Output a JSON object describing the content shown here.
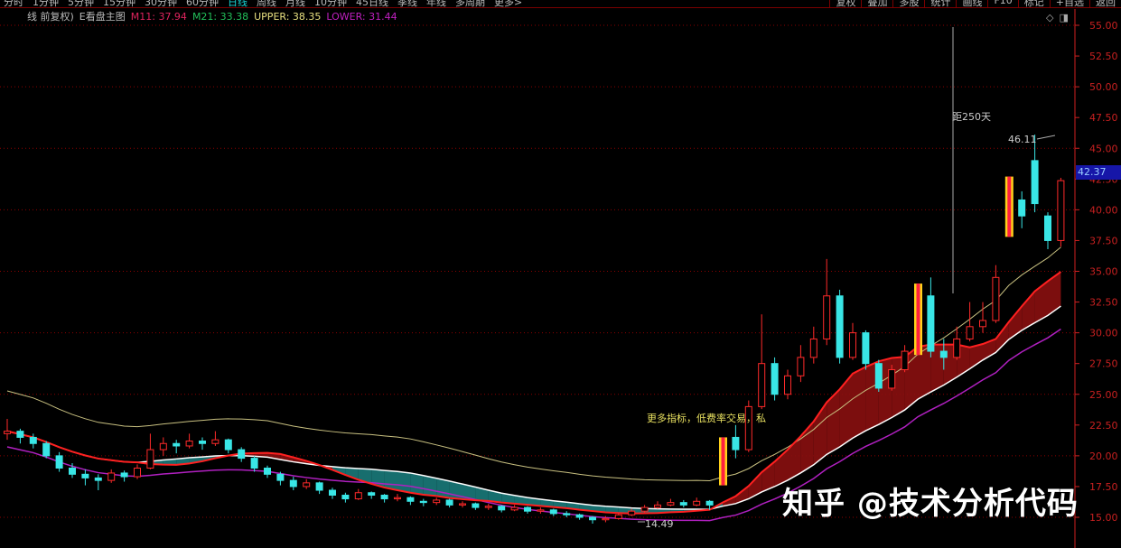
{
  "toolbar": {
    "periods": [
      "分时",
      "1分钟",
      "5分钟",
      "15分钟",
      "30分钟",
      "60分钟",
      "日线",
      "周线",
      "月线",
      "10分钟",
      "45日线",
      "季线",
      "年线",
      "多周期",
      "更多>"
    ],
    "active_period": "日线",
    "actions": [
      "复权",
      "叠加",
      "多股",
      "统计",
      "画线",
      "F10",
      "标记",
      "+自选",
      "返回"
    ]
  },
  "legend": {
    "title": "线 前复权)",
    "indicator": "E看盘主图",
    "m11": "M11: 37.94",
    "m21": "M21: 33.38",
    "upper": "UPPER: 38.35",
    "lower": "LOWER: 31.44"
  },
  "current_price": "42.37",
  "annotations": {
    "high": "46.11",
    "low": "14.49",
    "distance": "距250天",
    "promo": "更多指标，低费率交易，私"
  },
  "watermark": "知乎 @技术分析代码",
  "colors": {
    "up": "#ff2a2a",
    "down": "#39e6e6",
    "m11": "#ff2020",
    "m21": "#ffffff",
    "upper": "#c8c080",
    "lower": "#b020c0",
    "fill_up": "#8a1010",
    "fill_down": "#1a7a7a",
    "grid": "#8a0000",
    "axis": "#d02020"
  },
  "chart_data": {
    "type": "candlestick",
    "y_axis_ticks": [
      "55.00",
      "52.50",
      "50.00",
      "47.50",
      "45.00",
      "42.50",
      "40.00",
      "37.50",
      "35.00",
      "32.50",
      "30.00",
      "27.50",
      "25.00",
      "22.50",
      "20.00",
      "17.50",
      "15.00"
    ],
    "ylim": [
      15,
      55
    ],
    "grid": true,
    "ohlc": [
      [
        21.8,
        23,
        21.3,
        22.0
      ],
      [
        22.0,
        22.2,
        21.0,
        21.5
      ],
      [
        21.5,
        21.8,
        20.6,
        21.0
      ],
      [
        21.0,
        21.2,
        19.8,
        20.0
      ],
      [
        20.0,
        20.3,
        18.7,
        19.0
      ],
      [
        19.0,
        19.4,
        18.2,
        18.5
      ],
      [
        18.5,
        18.9,
        17.6,
        18.2
      ],
      [
        18.2,
        18.5,
        17.2,
        18.0
      ],
      [
        18.0,
        18.9,
        17.8,
        18.6
      ],
      [
        18.6,
        18.8,
        17.9,
        18.3
      ],
      [
        18.3,
        19.3,
        18.1,
        19.0
      ],
      [
        19.0,
        21.8,
        18.9,
        20.5
      ],
      [
        20.5,
        21.5,
        20.0,
        21.0
      ],
      [
        21.0,
        21.3,
        20.2,
        20.8
      ],
      [
        20.8,
        21.8,
        20.6,
        21.2
      ],
      [
        21.2,
        21.5,
        20.5,
        21.0
      ],
      [
        21.0,
        22.0,
        20.8,
        21.3
      ],
      [
        21.3,
        21.4,
        20.2,
        20.5
      ],
      [
        20.5,
        20.7,
        19.5,
        19.8
      ],
      [
        19.8,
        20.0,
        18.7,
        19.0
      ],
      [
        19.0,
        19.2,
        18.2,
        18.5
      ],
      [
        18.5,
        18.7,
        17.6,
        18.0
      ],
      [
        18.0,
        18.3,
        17.2,
        17.5
      ],
      [
        17.5,
        18.1,
        17.3,
        17.8
      ],
      [
        17.8,
        17.9,
        16.9,
        17.2
      ],
      [
        17.2,
        17.4,
        16.5,
        16.8
      ],
      [
        16.8,
        17.0,
        16.2,
        16.5
      ],
      [
        16.5,
        17.3,
        16.4,
        17.0
      ],
      [
        17.0,
        17.1,
        16.5,
        16.8
      ],
      [
        16.8,
        16.9,
        16.2,
        16.5
      ],
      [
        16.5,
        16.9,
        16.3,
        16.6
      ],
      [
        16.6,
        16.7,
        16.0,
        16.3
      ],
      [
        16.3,
        16.5,
        15.9,
        16.2
      ],
      [
        16.2,
        16.6,
        16.0,
        16.4
      ],
      [
        16.4,
        16.5,
        15.8,
        16.0
      ],
      [
        16.0,
        16.3,
        15.8,
        16.1
      ],
      [
        16.1,
        16.2,
        15.6,
        15.8
      ],
      [
        15.8,
        16.1,
        15.6,
        15.9
      ],
      [
        15.9,
        16.0,
        15.4,
        15.6
      ],
      [
        15.6,
        16.0,
        15.5,
        15.8
      ],
      [
        15.8,
        15.9,
        15.3,
        15.5
      ],
      [
        15.5,
        15.8,
        15.3,
        15.6
      ],
      [
        15.6,
        15.7,
        15.1,
        15.3
      ],
      [
        15.3,
        15.5,
        15.0,
        15.2
      ],
      [
        15.2,
        15.3,
        14.8,
        15.0
      ],
      [
        15.0,
        15.1,
        14.49,
        14.8
      ],
      [
        14.8,
        15.1,
        14.6,
        14.9
      ],
      [
        14.9,
        15.4,
        14.8,
        15.2
      ],
      [
        15.2,
        15.7,
        15.1,
        15.5
      ],
      [
        15.5,
        16.0,
        15.4,
        15.8
      ],
      [
        15.8,
        16.3,
        15.7,
        16.0
      ],
      [
        16.0,
        16.5,
        15.9,
        16.2
      ],
      [
        16.2,
        16.4,
        15.8,
        16.0
      ],
      [
        16.0,
        16.6,
        15.9,
        16.3
      ],
      [
        16.3,
        16.4,
        15.6,
        16.0
      ],
      [
        17.6,
        21.5,
        17.6,
        21.5
      ],
      [
        21.5,
        22.5,
        19.8,
        20.5
      ],
      [
        20.5,
        24.5,
        20.3,
        24.0
      ],
      [
        24.0,
        31.5,
        23.8,
        27.5
      ],
      [
        27.5,
        28.0,
        24.5,
        25.0
      ],
      [
        25.0,
        27.0,
        24.6,
        26.5
      ],
      [
        26.5,
        29.0,
        26.0,
        28.0
      ],
      [
        28.0,
        30.5,
        27.5,
        29.5
      ],
      [
        29.5,
        36.0,
        29.0,
        33.0
      ],
      [
        33.0,
        33.5,
        27.5,
        28.0
      ],
      [
        28.0,
        30.8,
        27.8,
        30.0
      ],
      [
        30.0,
        30.2,
        27.0,
        27.5
      ],
      [
        27.5,
        27.8,
        25.2,
        25.5
      ],
      [
        25.5,
        27.4,
        25.3,
        27.0
      ],
      [
        27.0,
        29.0,
        26.8,
        28.5
      ],
      [
        28.2,
        34.0,
        28.2,
        34.0
      ],
      [
        33.0,
        34.5,
        28.0,
        28.5
      ],
      [
        28.5,
        29.5,
        27.0,
        28.0
      ],
      [
        28.0,
        30.5,
        27.8,
        29.5
      ],
      [
        29.5,
        32.5,
        29.3,
        30.5
      ],
      [
        30.5,
        32.5,
        30.0,
        31.0
      ],
      [
        31.0,
        35.5,
        30.8,
        34.5
      ],
      [
        37.8,
        42.7,
        37.8,
        42.7
      ],
      [
        40.8,
        41.5,
        38.5,
        39.5
      ],
      [
        44.0,
        46.11,
        39.8,
        40.5
      ],
      [
        39.5,
        39.8,
        36.8,
        37.5
      ],
      [
        37.5,
        42.6,
        37.0,
        42.37
      ]
    ],
    "limit_up_candles": [
      55,
      70,
      77
    ]
  }
}
